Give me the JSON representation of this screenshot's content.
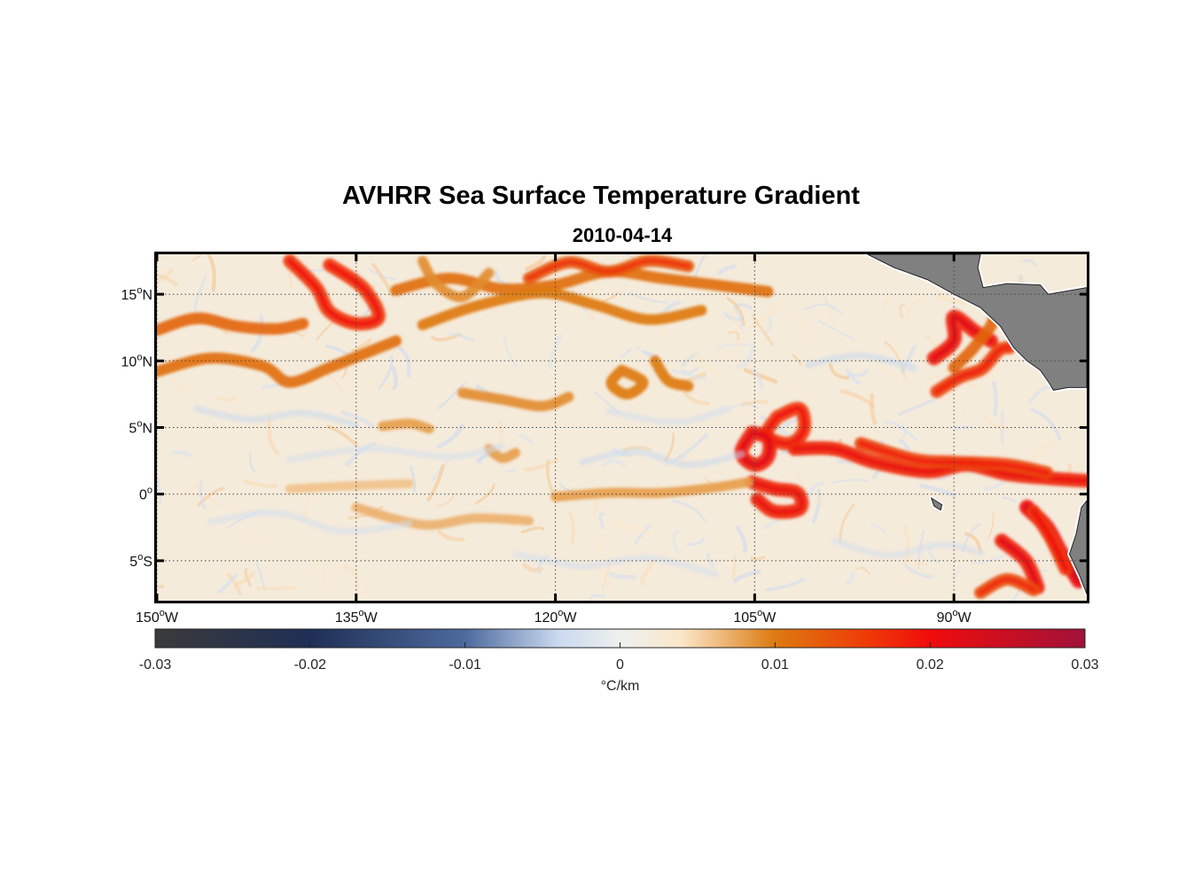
{
  "title": "AVHRR Sea Surface Temperature Gradient",
  "subtitle": "2010-04-14",
  "map": {
    "extent": {
      "lon_min": -150,
      "lon_max": -80,
      "lat_min": -8,
      "lat_max": 18
    },
    "gridlines": "dotted",
    "land_color": "#808080",
    "lat_ticks": [
      {
        "value": 15,
        "deg": "15",
        "hemi": "N"
      },
      {
        "value": 10,
        "deg": "10",
        "hemi": "N"
      },
      {
        "value": 5,
        "deg": "5",
        "hemi": "N"
      },
      {
        "value": 0,
        "deg": "0",
        "hemi": ""
      },
      {
        "value": -5,
        "deg": "5",
        "hemi": "S"
      }
    ],
    "lon_ticks": [
      {
        "value": -150,
        "deg": "150",
        "hemi": "W"
      },
      {
        "value": -135,
        "deg": "135",
        "hemi": "W"
      },
      {
        "value": -120,
        "deg": "120",
        "hemi": "W"
      },
      {
        "value": -105,
        "deg": "105",
        "hemi": "W"
      },
      {
        "value": -90,
        "deg": "90",
        "hemi": "W"
      }
    ]
  },
  "colorbar": {
    "min": -0.03,
    "max": 0.03,
    "ticks": [
      "-0.03",
      "-0.02",
      "-0.01",
      "0",
      "0.01",
      "0.02",
      "0.03"
    ],
    "tick_values": [
      -0.03,
      -0.02,
      -0.01,
      0,
      0.01,
      0.02,
      0.03
    ],
    "unit_label": "°C/km",
    "stops": [
      {
        "v": -0.03,
        "color": "#3a3a3a"
      },
      {
        "v": -0.02,
        "color": "#1f2f55"
      },
      {
        "v": -0.01,
        "color": "#4d6a9e"
      },
      {
        "v": -0.004,
        "color": "#c9d9ee"
      },
      {
        "v": 0,
        "color": "#eef0ee"
      },
      {
        "v": 0.004,
        "color": "#fbe6c8"
      },
      {
        "v": 0.01,
        "color": "#dd7a10"
      },
      {
        "v": 0.016,
        "color": "#ef3a08"
      },
      {
        "v": 0.02,
        "color": "#f00c0c"
      },
      {
        "v": 0.03,
        "color": "#a0123a"
      }
    ]
  },
  "features": [
    {
      "name": "front-north-west-arc",
      "value": 0.012,
      "points": [
        [
          -150,
          12.3
        ],
        [
          -147,
          13.2
        ],
        [
          -144,
          12.6
        ],
        [
          -141,
          12.4
        ],
        [
          -139,
          12.8
        ]
      ]
    },
    {
      "name": "front-north-west-loop",
      "value": 0.016,
      "points": [
        [
          -140,
          17.5
        ],
        [
          -138,
          15.5
        ],
        [
          -137,
          13.7
        ],
        [
          -135,
          12.8
        ],
        [
          -133.3,
          13.3
        ],
        [
          -134.5,
          15.5
        ],
        [
          -137,
          17.2
        ]
      ]
    },
    {
      "name": "front-north-west-lower",
      "value": 0.011,
      "points": [
        [
          -150,
          9.2
        ],
        [
          -146,
          10.2
        ],
        [
          -142,
          9.6
        ],
        [
          -140,
          8.4
        ],
        [
          -137,
          9.5
        ],
        [
          -134,
          10.7
        ],
        [
          -132,
          11.5
        ]
      ]
    },
    {
      "name": "front-north-central",
      "value": 0.011,
      "points": [
        [
          -132,
          15.3
        ],
        [
          -128,
          16.2
        ],
        [
          -124,
          15.4
        ],
        [
          -120,
          15.7
        ],
        [
          -116,
          16.7
        ],
        [
          -112,
          16.2
        ],
        [
          -108,
          15.7
        ],
        [
          -104,
          15.2
        ]
      ]
    },
    {
      "name": "front-north-central-2",
      "value": 0.01,
      "points": [
        [
          -130,
          12.7
        ],
        [
          -126,
          14.1
        ],
        [
          -121,
          15.1
        ],
        [
          -117,
          14.2
        ],
        [
          -113,
          13.1
        ],
        [
          -109,
          13.8
        ]
      ]
    },
    {
      "name": "front-north-central-3",
      "value": 0.013,
      "points": [
        [
          -122,
          16.2
        ],
        [
          -119,
          17.4
        ],
        [
          -116,
          16.7
        ],
        [
          -113,
          17.5
        ],
        [
          -110,
          17.1
        ]
      ]
    },
    {
      "name": "front-north-central-4",
      "value": 0.009,
      "points": [
        [
          -130,
          17.5
        ],
        [
          -129,
          15.8
        ],
        [
          -127,
          14.8
        ],
        [
          -125,
          16.6
        ]
      ]
    },
    {
      "name": "front-mid-left",
      "value": 0.009,
      "points": [
        [
          -127,
          7.6
        ],
        [
          -124,
          7.1
        ],
        [
          -121,
          6.6
        ],
        [
          -119,
          7.3
        ]
      ]
    },
    {
      "name": "front-mid-ring",
      "value": 0.01,
      "points": [
        [
          -115,
          9.3
        ],
        [
          -113.4,
          8.4
        ],
        [
          -114.6,
          7.5
        ],
        [
          -115.8,
          8.3
        ],
        [
          -115,
          9.3
        ]
      ]
    },
    {
      "name": "front-mid-right",
      "value": 0.01,
      "points": [
        [
          -112.5,
          10.0
        ],
        [
          -111.5,
          8.5
        ],
        [
          -110,
          8.1
        ]
      ]
    },
    {
      "name": "ring-105-large",
      "value": 0.016,
      "points": [
        [
          -103.3,
          5.8
        ],
        [
          -101.6,
          6.4
        ],
        [
          -101.3,
          4.8
        ],
        [
          -102.4,
          3.8
        ],
        [
          -104.1,
          4.4
        ],
        [
          -103.3,
          5.8
        ]
      ]
    },
    {
      "name": "ring-105-small",
      "value": 0.018,
      "points": [
        [
          -105.2,
          4.6
        ],
        [
          -104.0,
          4.2
        ],
        [
          -104.0,
          2.8
        ],
        [
          -105.0,
          2.2
        ],
        [
          -106.0,
          3.1
        ],
        [
          -105.2,
          4.6
        ]
      ]
    },
    {
      "name": "ring-105-eq",
      "value": 0.017,
      "points": [
        [
          -105.2,
          0.9
        ],
        [
          -103.5,
          0.4
        ],
        [
          -101.8,
          0.1
        ],
        [
          -101.6,
          -1.1
        ],
        [
          -103.5,
          -1.3
        ],
        [
          -104.8,
          -0.4
        ]
      ]
    },
    {
      "name": "front-eq-west",
      "value": 0.008,
      "points": [
        [
          -120,
          -0.2
        ],
        [
          -116,
          0.1
        ],
        [
          -112,
          0.1
        ],
        [
          -108,
          0.5
        ],
        [
          -105.5,
          0.9
        ]
      ]
    },
    {
      "name": "front-eq-main",
      "value": 0.017,
      "points": [
        [
          -102,
          3.4
        ],
        [
          -99,
          3.4
        ],
        [
          -96,
          2.4
        ],
        [
          -92,
          1.7
        ],
        [
          -89,
          2.2
        ],
        [
          -86,
          1.5
        ],
        [
          -83,
          1.2
        ],
        [
          -80,
          1.0
        ]
      ]
    },
    {
      "name": "front-eq-main-2",
      "value": 0.015,
      "points": [
        [
          -97,
          3.8
        ],
        [
          -93,
          2.6
        ],
        [
          -90,
          2.4
        ],
        [
          -86,
          2.2
        ],
        [
          -83,
          1.6
        ]
      ]
    },
    {
      "name": "front-east-coastal",
      "value": 0.018,
      "points": [
        [
          -91.5,
          10.2
        ],
        [
          -90,
          11.5
        ],
        [
          -90,
          13.3
        ],
        [
          -88.4,
          12.2
        ],
        [
          -87.2,
          11.5
        ]
      ]
    },
    {
      "name": "front-east-coastal-2",
      "value": 0.015,
      "points": [
        [
          -91.3,
          7.7
        ],
        [
          -89.5,
          8.8
        ],
        [
          -87.9,
          9.4
        ],
        [
          -86.6,
          10.8
        ],
        [
          -85.8,
          11.0
        ]
      ]
    },
    {
      "name": "front-east-coastal-3",
      "value": 0.012,
      "points": [
        [
          -88,
          15.0
        ],
        [
          -87,
          13.2
        ],
        [
          -88.5,
          11.0
        ],
        [
          -90,
          9.5
        ]
      ]
    },
    {
      "name": "front-southeast-1",
      "value": 0.02,
      "points": [
        [
          -80.6,
          -6.5
        ],
        [
          -82,
          -4.3
        ],
        [
          -83,
          -2.5
        ],
        [
          -84.5,
          -1.0
        ]
      ]
    },
    {
      "name": "front-southeast-2",
      "value": 0.018,
      "points": [
        [
          -86.4,
          -3.5
        ],
        [
          -84.6,
          -5.0
        ],
        [
          -83.7,
          -7.0
        ]
      ]
    },
    {
      "name": "front-southeast-3",
      "value": 0.016,
      "points": [
        [
          -84,
          -1.3
        ],
        [
          -82.7,
          -3.3
        ],
        [
          -81.6,
          -5.6
        ]
      ]
    },
    {
      "name": "front-southeast-4",
      "value": 0.014,
      "points": [
        [
          -88,
          -7.4
        ],
        [
          -86,
          -6.4
        ],
        [
          -84,
          -7.2
        ]
      ]
    },
    {
      "name": "front-sw-faint",
      "value": 0.007,
      "points": [
        [
          -135,
          -1.0
        ],
        [
          -130,
          -2.3
        ],
        [
          -126,
          -1.8
        ],
        [
          -122,
          -2.0
        ]
      ]
    },
    {
      "name": "front-west-equator",
      "value": 0.006,
      "points": [
        [
          -140,
          0.4
        ],
        [
          -136,
          0.6
        ],
        [
          -131,
          0.8
        ]
      ]
    },
    {
      "name": "front-mid-small-a",
      "value": 0.008,
      "points": [
        [
          -125,
          3.4
        ],
        [
          -124,
          2.7
        ],
        [
          -123,
          3.1
        ]
      ]
    },
    {
      "name": "front-mid-small-b",
      "value": 0.008,
      "points": [
        [
          -133,
          5.1
        ],
        [
          -131,
          5.3
        ],
        [
          -129.5,
          4.9
        ]
      ]
    },
    {
      "name": "front-neg-1",
      "value": -0.004,
      "points": [
        [
          -147,
          6.4
        ],
        [
          -143,
          5.6
        ],
        [
          -139,
          6.1
        ],
        [
          -135,
          5.2
        ]
      ]
    },
    {
      "name": "front-neg-2",
      "value": -0.003,
      "points": [
        [
          -146,
          -2.1
        ],
        [
          -141,
          -1.4
        ],
        [
          -136,
          -2.8
        ],
        [
          -131,
          -2.2
        ]
      ]
    },
    {
      "name": "front-neg-3",
      "value": -0.004,
      "points": [
        [
          -118,
          2.4
        ],
        [
          -114,
          3.2
        ],
        [
          -110,
          2.2
        ],
        [
          -106,
          3.0
        ]
      ]
    },
    {
      "name": "front-neg-4",
      "value": -0.003,
      "points": [
        [
          -123,
          -4.5
        ],
        [
          -118,
          -5.4
        ],
        [
          -113,
          -4.8
        ],
        [
          -108,
          -6.0
        ]
      ]
    },
    {
      "name": "front-neg-5",
      "value": -0.003,
      "points": [
        [
          -99,
          -3.5
        ],
        [
          -95,
          -4.6
        ],
        [
          -91,
          -3.8
        ],
        [
          -88,
          -4.4
        ]
      ]
    },
    {
      "name": "front-neg-6",
      "value": -0.004,
      "points": [
        [
          -101,
          9.7
        ],
        [
          -97,
          10.4
        ],
        [
          -93,
          9.4
        ]
      ]
    },
    {
      "name": "front-neg-7",
      "value": -0.003,
      "points": [
        [
          -140,
          2.6
        ],
        [
          -134,
          3.4
        ],
        [
          -128,
          2.8
        ],
        [
          -124,
          3.6
        ]
      ]
    },
    {
      "name": "front-neg-8",
      "value": -0.003,
      "points": [
        [
          -116,
          6.2
        ],
        [
          -111,
          5.4
        ],
        [
          -107,
          6.4
        ]
      ]
    }
  ],
  "land": [
    {
      "name": "central-america",
      "points": [
        [
          -96.5,
          18
        ],
        [
          -94.5,
          17
        ],
        [
          -92,
          16.1
        ],
        [
          -90,
          15.0
        ],
        [
          -88,
          14.0
        ],
        [
          -86.5,
          12.6
        ],
        [
          -85.5,
          11.0
        ],
        [
          -84.5,
          10.0
        ],
        [
          -83.5,
          9.3
        ],
        [
          -82.8,
          8.3
        ],
        [
          -82.5,
          7.8
        ],
        [
          -81.4,
          8.0
        ],
        [
          -80,
          8.0
        ],
        [
          -80,
          15.5
        ],
        [
          -82.9,
          15.0
        ],
        [
          -83.5,
          15.7
        ],
        [
          -86,
          15.8
        ],
        [
          -87.8,
          15.5
        ],
        [
          -88.2,
          17.0
        ],
        [
          -88.0,
          18
        ]
      ]
    },
    {
      "name": "south-america",
      "points": [
        [
          -80,
          -7.5
        ],
        [
          -80.5,
          -6.2
        ],
        [
          -81.3,
          -4.5
        ],
        [
          -80.8,
          -3.0
        ],
        [
          -80.4,
          -1.0
        ],
        [
          -80,
          -0.5
        ]
      ]
    },
    {
      "name": "galapagos",
      "points": [
        [
          -91.7,
          -0.3
        ],
        [
          -90.9,
          -0.8
        ],
        [
          -91.0,
          -1.2
        ],
        [
          -91.5,
          -0.9
        ]
      ]
    }
  ]
}
